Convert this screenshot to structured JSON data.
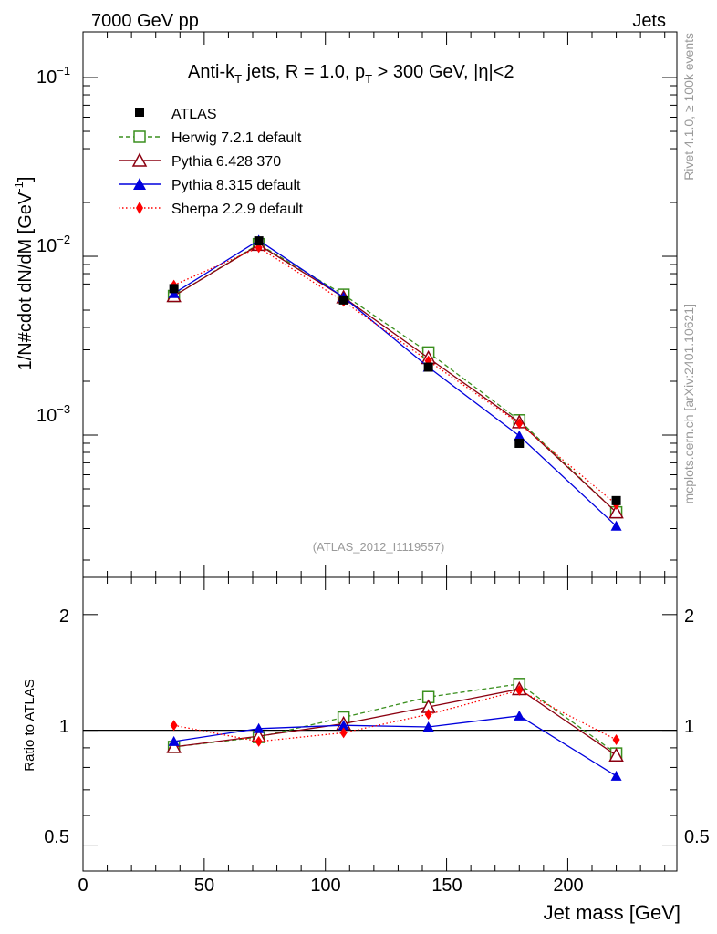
{
  "header": {
    "left": "7000 GeV pp",
    "right": "Jets"
  },
  "side_labels": {
    "rivet": "Rivet 4.1.0, ≥ 100k events",
    "mcplots": "mcplots.cern.ch [arXiv:2401.10621]"
  },
  "colors": {
    "atlas": "#000000",
    "herwig": "#3a8f1e",
    "pythia6": "#8b0010",
    "pythia8": "#0000dd",
    "sherpa": "#ff0000",
    "watermark": "#9a9a9a"
  },
  "chart_data": [
    {
      "type": "line",
      "scale": "log",
      "title_parts": {
        "a": "Anti-k",
        "a_sub": "T",
        "b": " jets, R = 1.0, p",
        "b_sub": "T",
        "c": " > 300 GeV, |η|<2"
      },
      "ylabel": "1/N#cdot dN/dM [GeV",
      "ylabel_sup": "-1",
      "ylabel_close": "]",
      "ylim": [
        0.00016,
        0.18
      ],
      "xlim": [
        0,
        245
      ],
      "y_ticks": [
        {
          "value": 0.1,
          "mantissa": "10",
          "exp": "−1"
        },
        {
          "value": 0.01,
          "mantissa": "10",
          "exp": "−2"
        },
        {
          "value": 0.001,
          "mantissa": "10",
          "exp": "−3"
        }
      ],
      "watermark": "(ATLAS_2012_I1119557)",
      "x": [
        37.5,
        72.5,
        107.5,
        142.5,
        180,
        220
      ],
      "series": [
        {
          "key": "atlas",
          "name": "ATLAS",
          "values": [
            0.0066,
            0.0122,
            0.0057,
            0.0024,
            0.0009,
            0.00043
          ]
        },
        {
          "key": "herwig",
          "name": "Herwig 7.2.1 default",
          "values": [
            0.006,
            0.0117,
            0.0061,
            0.0029,
            0.00121,
            0.00037
          ]
        },
        {
          "key": "pythia6",
          "name": "Pythia 6.428 370",
          "values": [
            0.006,
            0.0116,
            0.0059,
            0.0027,
            0.00118,
            0.00037
          ]
        },
        {
          "key": "pythia8",
          "name": "Pythia 8.315 default",
          "values": [
            0.0062,
            0.0123,
            0.0059,
            0.0024,
            0.00099,
            0.00031
          ]
        },
        {
          "key": "sherpa",
          "name": "Sherpa 2.2.9 default",
          "values": [
            0.0069,
            0.0112,
            0.0056,
            0.0026,
            0.00116,
            0.00041
          ]
        }
      ]
    },
    {
      "type": "line",
      "scale": "log",
      "ylabel": "Ratio to ATLAS",
      "xlabel": "Jet mass [GeV]",
      "ylim": [
        0.43,
        2.5
      ],
      "xlim": [
        0,
        245
      ],
      "x_ticks": [
        {
          "value": 0,
          "label": "0"
        },
        {
          "value": 50,
          "label": "50"
        },
        {
          "value": 100,
          "label": "100"
        },
        {
          "value": 150,
          "label": "150"
        },
        {
          "value": 200,
          "label": "200"
        }
      ],
      "y_ticks": [
        {
          "value": 2,
          "label": "2"
        },
        {
          "value": 1,
          "label": "1"
        },
        {
          "value": 0.5,
          "label": "0.5"
        }
      ],
      "reference": 1,
      "x": [
        37.5,
        72.5,
        107.5,
        142.5,
        180,
        220
      ],
      "series": [
        {
          "key": "herwig",
          "values": [
            0.905,
            0.96,
            1.08,
            1.22,
            1.32,
            0.87
          ]
        },
        {
          "key": "pythia6",
          "values": [
            0.905,
            0.965,
            1.04,
            1.15,
            1.28,
            0.86
          ]
        },
        {
          "key": "pythia8",
          "values": [
            0.935,
            1.01,
            1.03,
            1.02,
            1.09,
            0.76
          ]
        },
        {
          "key": "sherpa",
          "values": [
            1.03,
            0.935,
            0.985,
            1.1,
            1.27,
            0.945
          ]
        }
      ]
    }
  ]
}
